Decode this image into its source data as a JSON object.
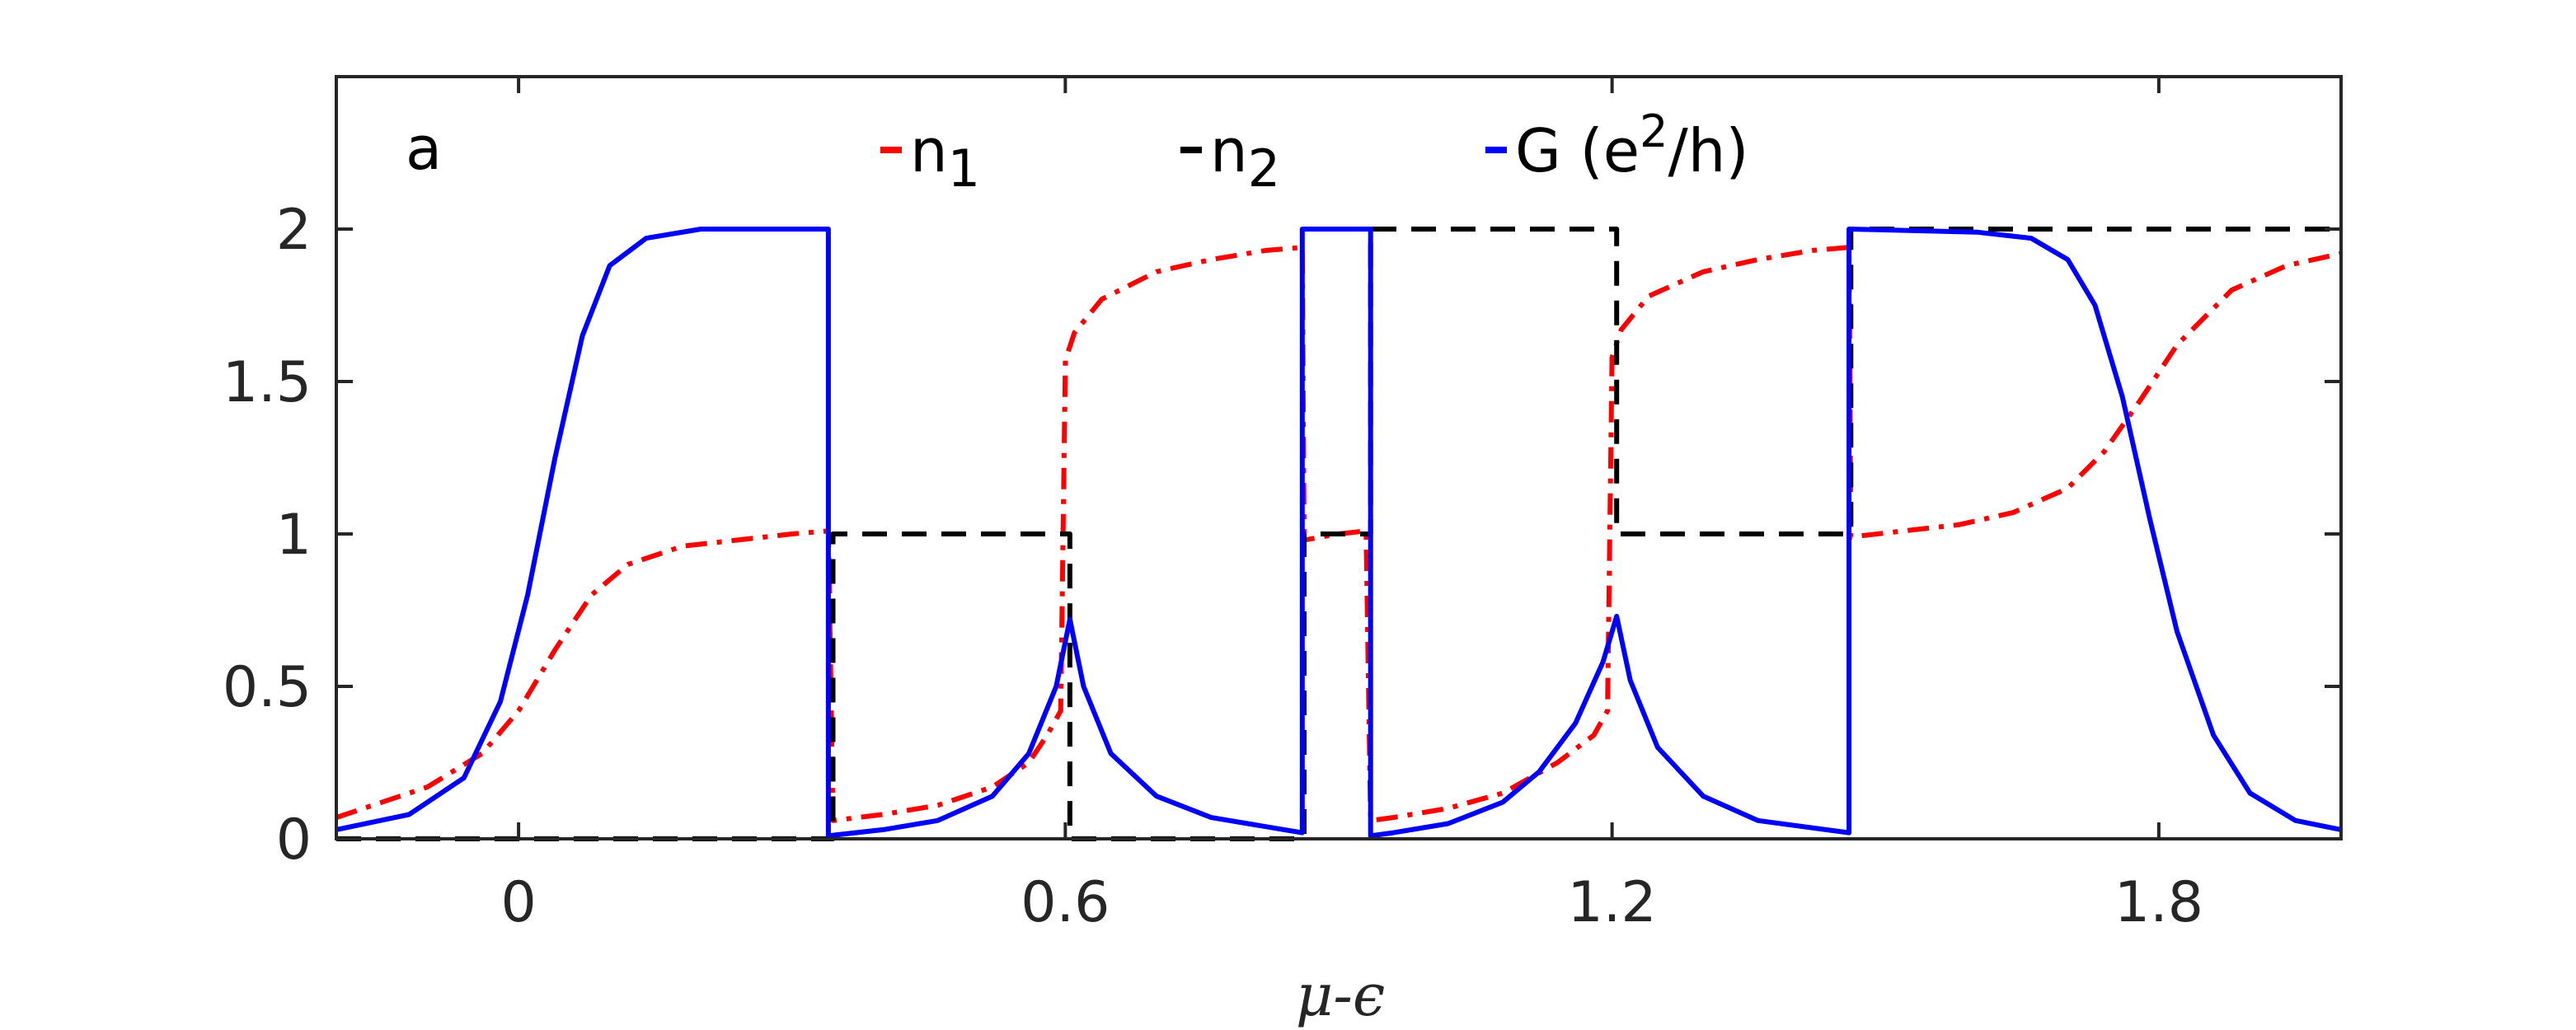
{
  "chart_data": {
    "type": "line",
    "panel_label": "a",
    "xlabel": "μ-ϵ",
    "ylabel": "",
    "xlim": [
      -0.2,
      2.0
    ],
    "ylim": [
      0,
      2.5
    ],
    "xticks": [
      0,
      0.6,
      1.2,
      1.8
    ],
    "xtick_labels": [
      "0",
      "0.6",
      "1.2",
      "1.8"
    ],
    "yticks": [
      0,
      0.5,
      1,
      1.5,
      2
    ],
    "ytick_labels": [
      "0",
      "0.5",
      "1",
      "1.5",
      "2"
    ],
    "grid": false,
    "legend_position": "top",
    "colors": {
      "n1": "#ff0000",
      "n2": "#000000",
      "G": "#0000ff",
      "axis": "#262626"
    },
    "series": [
      {
        "key": "n1",
        "legend_main": "n",
        "legend_sub": "1",
        "style": "dash-dot",
        "x": [
          -0.2,
          -0.1,
          -0.04,
          0.0,
          0.04,
          0.08,
          0.12,
          0.18,
          0.24,
          0.3,
          0.34,
          0.345,
          0.4,
          0.46,
          0.52,
          0.56,
          0.58,
          0.595,
          0.6,
          0.61,
          0.64,
          0.7,
          0.76,
          0.82,
          0.86,
          0.862,
          0.9,
          0.93,
          0.935,
          0.96,
          1.02,
          1.08,
          1.14,
          1.18,
          1.195,
          1.2,
          1.21,
          1.24,
          1.3,
          1.36,
          1.42,
          1.46,
          1.462,
          1.52,
          1.58,
          1.64,
          1.7,
          1.74,
          1.78,
          1.82,
          1.88,
          1.94,
          2.0
        ],
        "y": [
          0.07,
          0.17,
          0.28,
          0.42,
          0.62,
          0.8,
          0.9,
          0.96,
          0.98,
          1.0,
          1.01,
          0.06,
          0.08,
          0.11,
          0.17,
          0.25,
          0.34,
          0.42,
          1.57,
          1.66,
          1.77,
          1.86,
          1.9,
          1.93,
          1.94,
          0.98,
          1.0,
          1.01,
          0.06,
          0.07,
          0.1,
          0.15,
          0.25,
          0.34,
          0.42,
          1.58,
          1.67,
          1.78,
          1.86,
          1.9,
          1.93,
          1.94,
          0.99,
          1.01,
          1.03,
          1.07,
          1.15,
          1.27,
          1.44,
          1.62,
          1.8,
          1.88,
          1.92
        ]
      },
      {
        "key": "n2",
        "legend_main": "n",
        "legend_sub": "2",
        "style": "dashed",
        "x": [
          -0.2,
          0.345,
          0.345,
          0.605,
          0.605,
          0.862,
          0.862,
          0.935,
          0.935,
          1.205,
          1.205,
          1.462,
          1.462,
          2.0
        ],
        "y": [
          0,
          0,
          1,
          1,
          0,
          0,
          1,
          1,
          2,
          2,
          1,
          1,
          2,
          2
        ]
      },
      {
        "key": "G",
        "legend_main": "G (e",
        "legend_sup": "2",
        "legend_after": "/h)",
        "style": "solid",
        "x": [
          -0.2,
          -0.12,
          -0.06,
          -0.02,
          0.01,
          0.04,
          0.07,
          0.1,
          0.14,
          0.2,
          0.26,
          0.34,
          0.34,
          0.4,
          0.46,
          0.52,
          0.56,
          0.59,
          0.605,
          0.62,
          0.65,
          0.7,
          0.76,
          0.84,
          0.86,
          0.86,
          0.935,
          0.935,
          0.96,
          1.02,
          1.08,
          1.12,
          1.16,
          1.19,
          1.205,
          1.22,
          1.25,
          1.3,
          1.36,
          1.46,
          1.46,
          1.6,
          1.66,
          1.7,
          1.73,
          1.76,
          1.79,
          1.82,
          1.86,
          1.9,
          1.95,
          2.0
        ],
        "y": [
          0.03,
          0.08,
          0.2,
          0.45,
          0.8,
          1.25,
          1.65,
          1.88,
          1.97,
          2.0,
          2.0,
          2.0,
          0.01,
          0.03,
          0.06,
          0.14,
          0.28,
          0.5,
          0.72,
          0.5,
          0.28,
          0.14,
          0.07,
          0.03,
          0.02,
          2.0,
          2.0,
          0.01,
          0.02,
          0.05,
          0.12,
          0.22,
          0.38,
          0.58,
          0.73,
          0.52,
          0.3,
          0.14,
          0.06,
          0.02,
          2.0,
          1.99,
          1.97,
          1.9,
          1.75,
          1.45,
          1.05,
          0.68,
          0.34,
          0.15,
          0.06,
          0.03
        ]
      }
    ]
  }
}
